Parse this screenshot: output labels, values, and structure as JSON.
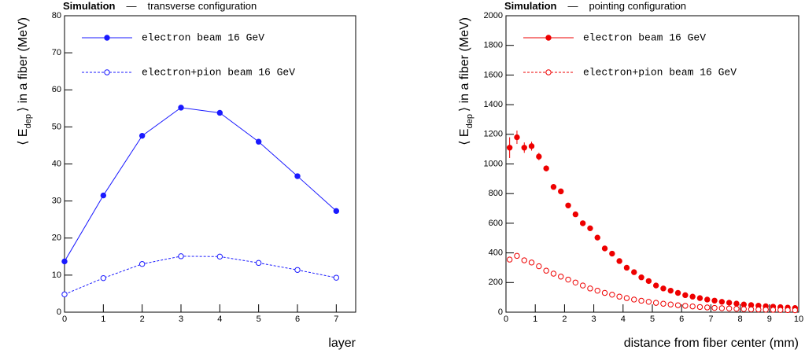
{
  "chart_data": [
    {
      "type": "line",
      "header": {
        "label": "Simulation",
        "separator": "—",
        "text": "transverse configuration"
      },
      "xlabel": "layer",
      "ylabel": {
        "pre": "⟨ E",
        "sub": "dep",
        "post": "⟩ in a fiber (MeV)"
      },
      "x": [
        0,
        1,
        2,
        3,
        4,
        5,
        6,
        7
      ],
      "xlim": [
        0,
        7.5
      ],
      "xticks": [
        0,
        1,
        2,
        3,
        4,
        5,
        6,
        7
      ],
      "ylim": [
        0,
        80
      ],
      "yticks": [
        0,
        10,
        20,
        30,
        40,
        50,
        60,
        70,
        80
      ],
      "series": [
        {
          "name": "electron beam 16 GeV",
          "color": "#1a1aff",
          "marker": "filled",
          "dash": false,
          "values": [
            13.7,
            31.5,
            47.6,
            55.2,
            53.8,
            46.0,
            36.7,
            27.3
          ]
        },
        {
          "name": "electron+pion beam 16 GeV",
          "color": "#1a1aff",
          "marker": "open",
          "dash": true,
          "values": [
            4.8,
            9.2,
            13.0,
            15.1,
            15.0,
            13.3,
            11.4,
            9.3
          ]
        }
      ]
    },
    {
      "type": "scatter",
      "header": {
        "label": "Simulation",
        "separator": "—",
        "text": "pointing configuration"
      },
      "xlabel": "distance from fiber center (mm)",
      "ylabel": {
        "pre": "⟨ E",
        "sub": "dep",
        "post": "⟩ in a fiber (MeV)"
      },
      "x": [
        0.125,
        0.375,
        0.625,
        0.875,
        1.125,
        1.375,
        1.625,
        1.875,
        2.125,
        2.375,
        2.625,
        2.875,
        3.125,
        3.375,
        3.625,
        3.875,
        4.125,
        4.375,
        4.625,
        4.875,
        5.125,
        5.375,
        5.625,
        5.875,
        6.125,
        6.375,
        6.625,
        6.875,
        7.125,
        7.375,
        7.625,
        7.875,
        8.125,
        8.375,
        8.625,
        8.875,
        9.125,
        9.375,
        9.625,
        9.875
      ],
      "xlim": [
        0,
        10
      ],
      "xticks": [
        0,
        1,
        2,
        3,
        4,
        5,
        6,
        7,
        8,
        9,
        10
      ],
      "ylim": [
        0,
        2000
      ],
      "yticks": [
        0,
        200,
        400,
        600,
        800,
        1000,
        1200,
        1400,
        1600,
        1800,
        2000
      ],
      "series": [
        {
          "name": "electron beam 16 GeV",
          "color": "#ee0000",
          "marker": "filled",
          "dash": false,
          "values": [
            1110,
            1180,
            1110,
            1120,
            1050,
            970,
            845,
            815,
            720,
            660,
            600,
            566,
            503,
            430,
            395,
            345,
            300,
            270,
            235,
            210,
            180,
            160,
            145,
            130,
            115,
            105,
            95,
            85,
            78,
            70,
            64,
            58,
            52,
            48,
            44,
            40,
            37,
            34,
            31,
            28
          ],
          "errors": [
            70,
            45,
            35,
            30,
            25,
            20,
            15,
            15,
            12,
            10,
            10,
            9,
            8,
            8,
            7,
            7,
            6,
            6,
            5,
            5,
            5,
            4,
            4,
            4,
            4,
            3,
            3,
            3,
            3,
            3,
            3,
            2,
            2,
            2,
            2,
            2,
            2,
            2,
            2,
            2
          ]
        },
        {
          "name": "electron+pion beam 16 GeV",
          "color": "#ee0000",
          "marker": "open",
          "dash": true,
          "values": [
            355,
            380,
            350,
            335,
            310,
            280,
            260,
            240,
            220,
            200,
            180,
            160,
            145,
            130,
            118,
            105,
            95,
            85,
            77,
            70,
            63,
            57,
            52,
            47,
            43,
            39,
            35,
            32,
            29,
            27,
            25,
            23,
            21,
            19,
            18,
            17,
            16,
            15,
            14,
            13
          ]
        }
      ]
    }
  ]
}
